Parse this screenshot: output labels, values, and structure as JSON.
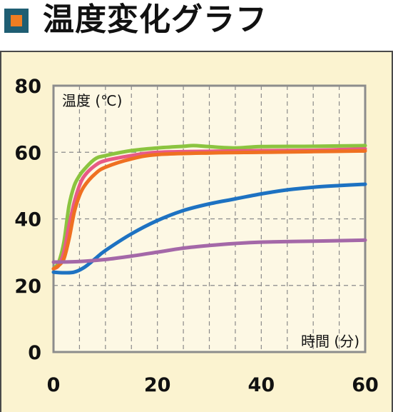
{
  "header": {
    "title": "温度変化グラフ"
  },
  "colors": {
    "marker_outer": "#1f5e73",
    "marker_inner": "#ef7d22",
    "background": "#fbf3d0"
  },
  "chart_data": {
    "type": "line",
    "title": "温度変化グラフ",
    "xlabel": "時間 (分)",
    "ylabel": "温度 (℃)",
    "xlim": [
      0,
      60
    ],
    "ylim": [
      0,
      80
    ],
    "x_ticks": [
      0,
      20,
      40,
      60
    ],
    "y_ticks": [
      0,
      20,
      40,
      60,
      80
    ],
    "grid": true,
    "series": [
      {
        "color": "#8bc43f",
        "points": [
          [
            0,
            25
          ],
          [
            1,
            27
          ],
          [
            2,
            33
          ],
          [
            3,
            44
          ],
          [
            4,
            50
          ],
          [
            5,
            53
          ],
          [
            6,
            55
          ],
          [
            8,
            58
          ],
          [
            10,
            59
          ],
          [
            15,
            60.5
          ],
          [
            20,
            61.3
          ],
          [
            25,
            61.8
          ],
          [
            27,
            62
          ],
          [
            30,
            61.7
          ],
          [
            35,
            61.3
          ],
          [
            40,
            61.7
          ],
          [
            50,
            61.8
          ],
          [
            60,
            62
          ]
        ]
      },
      {
        "color": "#e85a85",
        "points": [
          [
            0,
            25
          ],
          [
            1,
            26
          ],
          [
            2,
            30
          ],
          [
            3,
            38
          ],
          [
            4,
            45
          ],
          [
            5,
            50
          ],
          [
            6,
            53
          ],
          [
            8,
            56
          ],
          [
            10,
            57.5
          ],
          [
            15,
            59
          ],
          [
            20,
            60
          ],
          [
            30,
            60.3
          ],
          [
            40,
            60.5
          ],
          [
            50,
            60.6
          ],
          [
            60,
            61
          ]
        ]
      },
      {
        "color": "#ef7021",
        "points": [
          [
            0,
            25
          ],
          [
            1,
            26
          ],
          [
            2,
            28
          ],
          [
            3,
            34
          ],
          [
            4,
            42
          ],
          [
            5,
            47
          ],
          [
            6,
            50
          ],
          [
            8,
            53.5
          ],
          [
            10,
            55.5
          ],
          [
            15,
            58
          ],
          [
            20,
            59.3
          ],
          [
            30,
            59.8
          ],
          [
            40,
            60
          ],
          [
            50,
            60.2
          ],
          [
            60,
            60.4
          ]
        ]
      },
      {
        "color": "#1d72c2",
        "points": [
          [
            0,
            24
          ],
          [
            2,
            23.8
          ],
          [
            4,
            24
          ],
          [
            6,
            25.5
          ],
          [
            8,
            28
          ],
          [
            10,
            30.5
          ],
          [
            15,
            35.5
          ],
          [
            20,
            39.5
          ],
          [
            25,
            42.5
          ],
          [
            30,
            44.5
          ],
          [
            35,
            46
          ],
          [
            40,
            47.5
          ],
          [
            45,
            48.7
          ],
          [
            50,
            49.5
          ],
          [
            55,
            50
          ],
          [
            60,
            50.4
          ]
        ]
      },
      {
        "color": "#a468a8",
        "points": [
          [
            0,
            27
          ],
          [
            5,
            27.2
          ],
          [
            10,
            27.8
          ],
          [
            15,
            28.8
          ],
          [
            20,
            30
          ],
          [
            25,
            31.2
          ],
          [
            30,
            32
          ],
          [
            35,
            32.6
          ],
          [
            40,
            33
          ],
          [
            50,
            33.3
          ],
          [
            60,
            33.6
          ]
        ]
      }
    ]
  }
}
